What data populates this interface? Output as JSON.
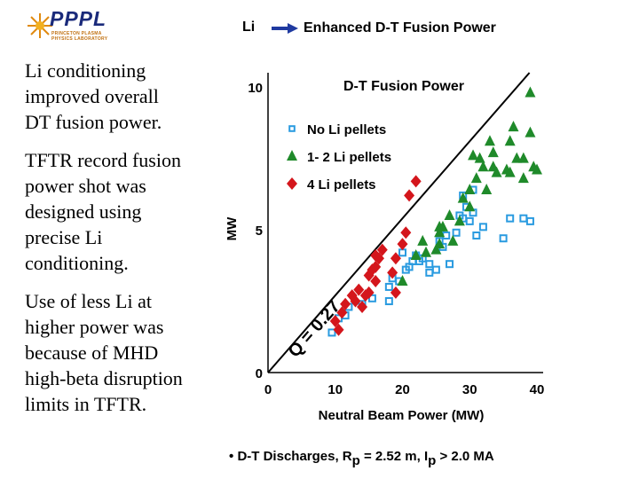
{
  "header": {
    "logo_text": "PPPL",
    "logo_subtext": [
      "PRINCETON PLASMA",
      "PHYSICS LABORATORY"
    ],
    "li_label": "Li",
    "enhanced_label": "Enhanced D-T Fusion Power"
  },
  "left_panel": {
    "para1": [
      "Li conditioning",
      "improved overall",
      "DT fusion power."
    ],
    "para2": [
      "TFTR record fusion",
      "power shot was",
      "designed using",
      "precise Li",
      "conditioning."
    ],
    "para3": [
      "Use of less Li at",
      "higher power was",
      "because of MHD",
      "high-beta disruption",
      "limits in TFTR."
    ]
  },
  "footnote": {
    "bullet": "•",
    "text_start": "D-T Discharges, R",
    "r_sub": "p",
    "text_mid": "= 2.52 m, I",
    "i_sub": "p",
    "text_end": "> 2.0 MA"
  },
  "colors": {
    "no_li": "#2a9be0",
    "li_1_2": "#1f8a2a",
    "li_4": "#d4161c",
    "arrow": "#1f3aa0"
  },
  "chart_data": {
    "type": "scatter",
    "title": "D-T Fusion Power",
    "xlabel": "Neutral Beam Power (MW)",
    "ylabel": "MW",
    "xlim": [
      0,
      40
    ],
    "ylim": [
      0,
      10.5
    ],
    "x_ticks": [
      0,
      10,
      20,
      30,
      40
    ],
    "y_ticks": [
      0,
      5,
      10
    ],
    "reference_line": {
      "label": "Q = 0.27",
      "slope": 0.27
    },
    "legend_position": "top",
    "series": [
      {
        "name": "No Li pellets",
        "marker": "square",
        "points": [
          [
            9.5,
            1.4
          ],
          [
            10.5,
            1.9
          ],
          [
            11.5,
            2.0
          ],
          [
            12,
            2.3
          ],
          [
            14,
            2.4
          ],
          [
            15.5,
            2.6
          ],
          [
            18,
            2.5
          ],
          [
            18,
            3.0
          ],
          [
            18.5,
            3.3
          ],
          [
            19.5,
            3.2
          ],
          [
            20,
            4.2
          ],
          [
            20.5,
            3.6
          ],
          [
            21,
            3.7
          ],
          [
            21.5,
            3.9
          ],
          [
            22,
            4.1
          ],
          [
            22.5,
            3.9
          ],
          [
            23,
            4.0
          ],
          [
            24,
            3.5
          ],
          [
            25,
            3.6
          ],
          [
            25.5,
            4.6
          ],
          [
            26,
            4.4
          ],
          [
            27,
            3.8
          ],
          [
            28,
            4.9
          ],
          [
            28.5,
            5.5
          ],
          [
            29,
            6.2
          ],
          [
            29,
            5.4
          ],
          [
            29.5,
            5.8
          ],
          [
            30,
            5.3
          ],
          [
            30.5,
            5.6
          ],
          [
            31,
            4.8
          ],
          [
            32,
            5.1
          ],
          [
            35,
            4.7
          ],
          [
            36,
            5.4
          ],
          [
            38,
            5.4
          ],
          [
            39,
            5.3
          ],
          [
            24,
            3.8
          ],
          [
            26.5,
            4.8
          ],
          [
            30.5,
            6.4
          ]
        ]
      },
      {
        "name": "1- 2 Li pellets",
        "marker": "triangle",
        "points": [
          [
            20,
            3.2
          ],
          [
            22,
            4.1
          ],
          [
            23,
            4.6
          ],
          [
            23.5,
            4.2
          ],
          [
            25,
            4.3
          ],
          [
            25.5,
            4.5
          ],
          [
            25.5,
            5.1
          ],
          [
            26,
            5.1
          ],
          [
            27,
            5.5
          ],
          [
            27.5,
            4.6
          ],
          [
            28.5,
            5.3
          ],
          [
            29,
            6.1
          ],
          [
            30,
            6.4
          ],
          [
            30,
            5.8
          ],
          [
            31,
            6.8
          ],
          [
            31.5,
            7.5
          ],
          [
            32,
            7.2
          ],
          [
            32.5,
            6.4
          ],
          [
            33.5,
            7.2
          ],
          [
            33,
            8.1
          ],
          [
            34,
            7.0
          ],
          [
            35.5,
            7.1
          ],
          [
            36,
            7.0
          ],
          [
            36,
            8.1
          ],
          [
            37,
            7.5
          ],
          [
            38,
            6.8
          ],
          [
            38,
            7.5
          ],
          [
            39,
            8.4
          ],
          [
            39.5,
            7.2
          ],
          [
            40,
            7.1
          ],
          [
            39,
            9.8
          ],
          [
            36.5,
            8.6
          ],
          [
            30.5,
            7.6
          ],
          [
            33.5,
            7.7
          ],
          [
            25.5,
            4.9
          ]
        ]
      },
      {
        "name": "4 Li pellets",
        "marker": "diamond",
        "points": [
          [
            10,
            1.8
          ],
          [
            10.5,
            1.5
          ],
          [
            11,
            2.1
          ],
          [
            11.5,
            2.4
          ],
          [
            12.5,
            2.7
          ],
          [
            13,
            2.5
          ],
          [
            13.5,
            2.9
          ],
          [
            14,
            2.3
          ],
          [
            14.5,
            2.7
          ],
          [
            15,
            2.8
          ],
          [
            15,
            3.4
          ],
          [
            15.5,
            3.6
          ],
          [
            16,
            3.7
          ],
          [
            16,
            4.1
          ],
          [
            16.5,
            4.0
          ],
          [
            17,
            4.3
          ],
          [
            18.5,
            3.5
          ],
          [
            19,
            2.8
          ],
          [
            19,
            4.0
          ],
          [
            20,
            4.5
          ],
          [
            20.5,
            4.9
          ],
          [
            21,
            6.2
          ],
          [
            22,
            6.7
          ],
          [
            16,
            3.2
          ]
        ]
      }
    ]
  }
}
